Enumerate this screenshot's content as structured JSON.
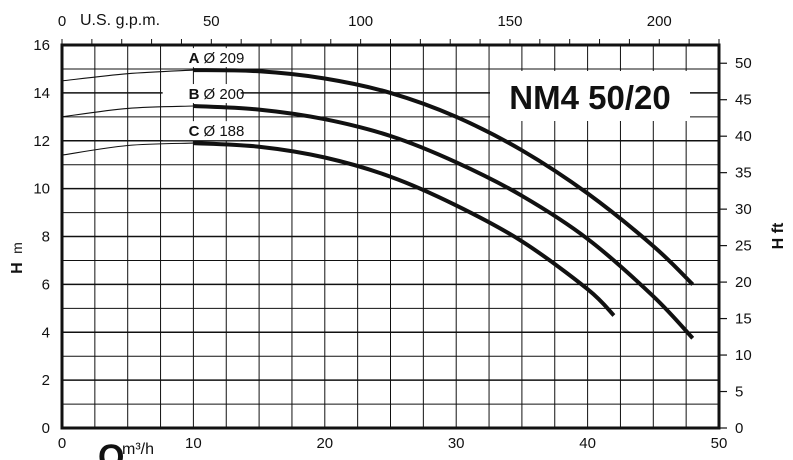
{
  "chart_data": {
    "type": "line",
    "title": "NM4 50/20",
    "xlabel": "Q",
    "xunit": "m³/h",
    "x2label": "U.S. g.p.m.",
    "ylabel": "H",
    "yunit": "m",
    "y2label": "H ft",
    "xlim": [
      0,
      50
    ],
    "ylim": [
      0,
      16
    ],
    "x2lim": [
      0,
      220
    ],
    "y2lim": [
      0,
      52.5
    ],
    "x_ticks": [
      "0",
      "10",
      "20",
      "30",
      "40",
      "50"
    ],
    "y_ticks": [
      "0",
      "2",
      "4",
      "6",
      "8",
      "10",
      "12",
      "14",
      "16"
    ],
    "x2_ticks": [
      "0",
      "50",
      "100",
      "150",
      "200"
    ],
    "y2_ticks": [
      "0",
      "5",
      "10",
      "15",
      "20",
      "25",
      "30",
      "35",
      "40",
      "45",
      "50"
    ],
    "grid": true,
    "series": [
      {
        "letter": "A",
        "diameter": "Ø 209",
        "x": [
          0,
          5,
          10,
          15,
          20,
          25,
          30,
          35,
          40,
          45,
          48
        ],
        "y": [
          14.5,
          14.8,
          14.95,
          14.9,
          14.6,
          14.0,
          13.0,
          11.6,
          9.8,
          7.6,
          6.0
        ]
      },
      {
        "letter": "B",
        "diameter": "Ø 200",
        "x": [
          0,
          5,
          10,
          15,
          20,
          25,
          30,
          35,
          40,
          45,
          48
        ],
        "y": [
          13.0,
          13.35,
          13.45,
          13.3,
          12.9,
          12.2,
          11.1,
          9.7,
          7.9,
          5.5,
          3.75
        ]
      },
      {
        "letter": "C",
        "diameter": "Ø 188",
        "x": [
          0,
          5,
          10,
          15,
          20,
          25,
          30,
          35,
          40,
          42
        ],
        "y": [
          11.4,
          11.8,
          11.9,
          11.75,
          11.3,
          10.5,
          9.3,
          7.8,
          5.8,
          4.7
        ]
      }
    ]
  }
}
